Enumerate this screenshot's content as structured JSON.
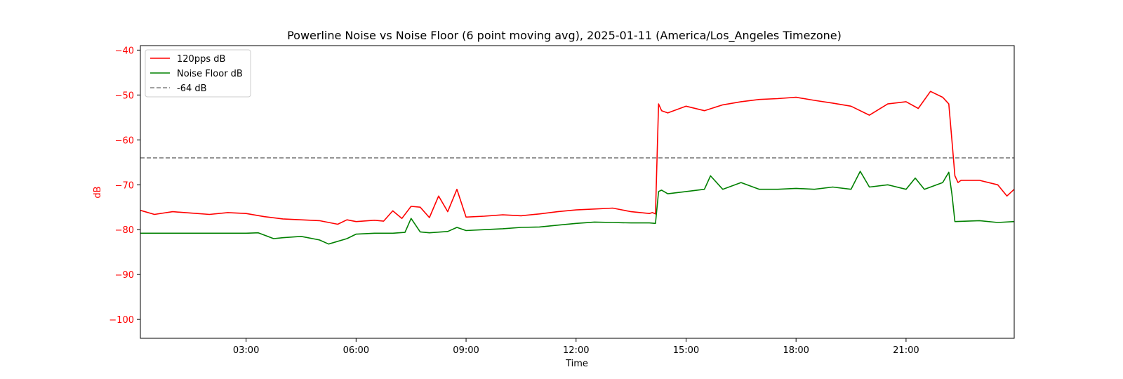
{
  "chart_data": {
    "type": "line",
    "title": "Powerline Noise vs Noise Floor (6 point moving avg), 2025-01-11 (America/Los_Angeles Timezone)",
    "xlabel": "Time",
    "ylabel": "dB",
    "x_ticks": [
      "03:00",
      "06:00",
      "09:00",
      "12:00",
      "15:00",
      "18:00",
      "21:00"
    ],
    "y_ticks": [
      "−40",
      "−50",
      "−60",
      "−70",
      "−80",
      "−90",
      "−100"
    ],
    "y_tick_values": [
      -40,
      -50,
      -60,
      -70,
      -80,
      -90,
      -100
    ],
    "xlim": [
      "00:07",
      "23:57"
    ],
    "ylim": [
      -104.2,
      -39.0
    ],
    "grid": false,
    "legend_position": "top-left",
    "colors": {
      "series_120pps": "#ff0000",
      "noise_floor": "#008000",
      "threshold": "#808080",
      "ylabel": "#ff0000"
    },
    "series": [
      {
        "name": "120pps dB",
        "x": [
          "00:07",
          "00:30",
          "01:00",
          "01:30",
          "02:00",
          "02:30",
          "03:00",
          "03:30",
          "04:00",
          "04:30",
          "05:00",
          "05:30",
          "05:45",
          "06:00",
          "06:30",
          "06:45",
          "07:00",
          "07:15",
          "07:30",
          "07:45",
          "08:00",
          "08:15",
          "08:30",
          "08:45",
          "09:00",
          "09:30",
          "10:00",
          "10:30",
          "11:00",
          "11:30",
          "12:00",
          "12:30",
          "13:00",
          "13:30",
          "14:00",
          "14:05",
          "14:10",
          "14:15",
          "14:20",
          "14:30",
          "15:00",
          "15:30",
          "16:00",
          "16:30",
          "17:00",
          "17:30",
          "18:00",
          "18:30",
          "19:00",
          "19:30",
          "20:00",
          "20:30",
          "21:00",
          "21:20",
          "21:40",
          "22:00",
          "22:10",
          "22:15",
          "22:20",
          "22:25",
          "22:30",
          "23:00",
          "23:30",
          "23:45",
          "23:57"
        ],
        "values": [
          -75.7,
          -76.6,
          -76.0,
          -76.3,
          -76.6,
          -76.2,
          -76.4,
          -77.1,
          -77.6,
          -77.8,
          -78.0,
          -78.8,
          -77.8,
          -78.2,
          -77.9,
          -78.1,
          -75.8,
          -77.5,
          -74.8,
          -75.0,
          -77.3,
          -72.5,
          -76.0,
          -71.0,
          -77.2,
          -77.0,
          -76.7,
          -76.9,
          -76.5,
          -76.0,
          -75.6,
          -75.4,
          -75.2,
          -76.0,
          -76.4,
          -76.2,
          -76.5,
          -52.0,
          -53.5,
          -54.0,
          -52.5,
          -53.5,
          -52.2,
          -51.5,
          -51.0,
          -50.8,
          -50.5,
          -51.2,
          -51.8,
          -52.5,
          -54.5,
          -52.0,
          -51.5,
          -53.0,
          -49.2,
          -50.5,
          -52.0,
          -60.0,
          -68.0,
          -69.5,
          -69.0,
          -69.0,
          -70.0,
          -72.5,
          -71.0
        ]
      },
      {
        "name": "Noise Floor dB",
        "x": [
          "00:07",
          "01:00",
          "02:00",
          "03:00",
          "03:20",
          "03:45",
          "04:00",
          "04:30",
          "05:00",
          "05:15",
          "05:45",
          "06:00",
          "06:30",
          "07:00",
          "07:20",
          "07:30",
          "07:45",
          "08:00",
          "08:30",
          "08:45",
          "09:00",
          "09:30",
          "10:00",
          "10:30",
          "11:00",
          "11:30",
          "12:00",
          "12:30",
          "13:00",
          "13:30",
          "14:00",
          "14:10",
          "14:15",
          "14:20",
          "14:30",
          "15:00",
          "15:30",
          "15:40",
          "16:00",
          "16:30",
          "17:00",
          "17:30",
          "18:00",
          "18:30",
          "19:00",
          "19:30",
          "19:45",
          "20:00",
          "20:30",
          "21:00",
          "21:15",
          "21:30",
          "22:00",
          "22:10",
          "22:15",
          "22:20",
          "23:00",
          "23:30",
          "23:57"
        ],
        "values": [
          -80.8,
          -80.8,
          -80.8,
          -80.8,
          -80.7,
          -82.0,
          -81.8,
          -81.5,
          -82.3,
          -83.2,
          -82.0,
          -81.0,
          -80.8,
          -80.8,
          -80.6,
          -77.5,
          -80.5,
          -80.7,
          -80.4,
          -79.5,
          -80.2,
          -80.0,
          -79.8,
          -79.5,
          -79.4,
          -79.0,
          -78.6,
          -78.3,
          -78.4,
          -78.5,
          -78.5,
          -78.6,
          -71.5,
          -71.2,
          -72.0,
          -71.5,
          -71.0,
          -68.0,
          -71.0,
          -69.5,
          -71.0,
          -71.0,
          -70.8,
          -71.0,
          -70.5,
          -71.0,
          -67.0,
          -70.5,
          -70.0,
          -71.0,
          -68.5,
          -71.0,
          -69.5,
          -67.2,
          -72.0,
          -78.2,
          -78.0,
          -78.4,
          -78.2
        ]
      },
      {
        "name": "-64 dB",
        "x": [
          "00:07",
          "23:57"
        ],
        "values": [
          -64,
          -64
        ],
        "style": "dashed"
      }
    ]
  }
}
